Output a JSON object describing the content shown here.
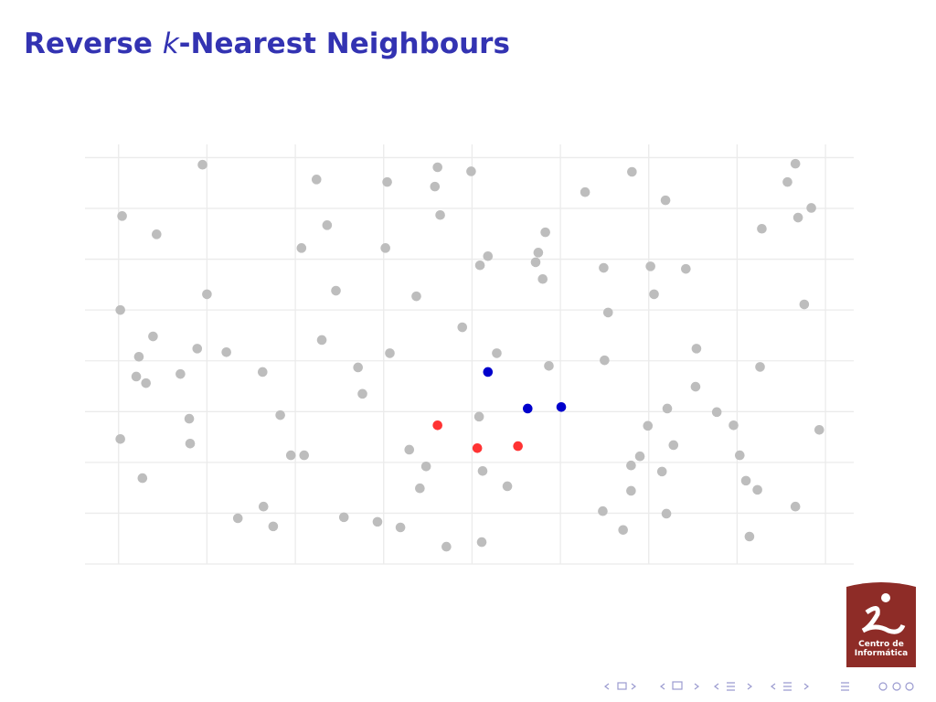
{
  "title_parts": [
    "Reverse ",
    "k",
    "-Nearest Neighbours"
  ],
  "logo": {
    "line1": "Centro de",
    "line2": "Informática"
  },
  "chart_data": {
    "type": "scatter",
    "xlim": [
      -0.38,
      8.32
    ],
    "ylim": [
      0,
      8.26
    ],
    "xticks": [
      0,
      1,
      2,
      3,
      4,
      5,
      6,
      7,
      8
    ],
    "yticks": [
      0,
      1,
      2,
      3,
      4,
      5,
      6,
      7,
      8
    ],
    "grid": true,
    "series": [
      {
        "color": "#bdbdbd",
        "x": [
          0.95,
          0.04,
          0.43,
          2.24,
          3.04,
          3.61,
          3.58,
          3.99,
          3.64,
          2.36,
          2.07,
          3.02,
          5.28,
          5.81,
          6.19,
          7.66,
          7.57,
          7.84,
          7.69,
          7.28,
          4.83,
          4.75,
          4.18,
          4.09,
          4.72,
          4.8,
          5.49,
          6.02,
          6.42,
          1.0,
          2.46,
          3.37,
          6.06,
          0.02,
          5.54,
          7.76,
          0.39,
          3.89,
          2.3,
          0.23,
          0.89,
          1.22,
          3.07,
          4.28,
          6.54,
          5.5,
          0.2,
          0.31,
          0.7,
          1.63,
          2.71,
          4.87,
          7.26,
          2.76,
          6.53,
          0.8,
          1.83,
          4.08,
          6.21,
          6.77,
          5.99,
          6.96,
          7.93,
          0.02,
          0.81,
          1.95,
          2.1,
          3.29,
          6.28,
          5.9,
          7.03,
          3.48,
          5.8,
          4.12,
          6.15,
          0.27,
          7.1,
          3.41,
          4.4,
          5.8,
          7.23,
          1.64,
          7.66,
          1.35,
          2.55,
          5.48,
          6.2,
          1.75,
          2.93,
          3.19,
          5.71,
          7.14,
          3.71,
          4.11
        ],
        "values": [
          7.86,
          6.85,
          6.49,
          7.57,
          7.52,
          7.81,
          7.43,
          7.73,
          6.87,
          6.67,
          6.22,
          6.22,
          7.32,
          7.72,
          7.16,
          7.88,
          7.52,
          7.01,
          6.82,
          6.6,
          6.53,
          6.13,
          6.06,
          5.88,
          5.94,
          5.61,
          5.83,
          5.86,
          5.81,
          5.31,
          5.38,
          5.27,
          5.31,
          5.0,
          4.95,
          5.11,
          4.48,
          4.66,
          4.41,
          4.08,
          4.24,
          4.17,
          4.15,
          4.15,
          4.24,
          4.01,
          3.69,
          3.56,
          3.74,
          3.78,
          3.87,
          3.9,
          3.88,
          3.35,
          3.49,
          2.86,
          2.93,
          2.9,
          3.06,
          2.99,
          2.72,
          2.73,
          2.64,
          2.46,
          2.37,
          2.14,
          2.14,
          2.25,
          2.34,
          2.12,
          2.14,
          1.92,
          1.94,
          1.83,
          1.82,
          1.69,
          1.64,
          1.49,
          1.53,
          1.44,
          1.46,
          1.13,
          1.13,
          0.9,
          0.92,
          1.04,
          0.99,
          0.74,
          0.83,
          0.72,
          0.67,
          0.54,
          0.34,
          0.43
        ]
      },
      {
        "color": "#0000cc",
        "x": [
          4.18,
          4.63,
          5.01
        ],
        "values": [
          3.78,
          3.06,
          3.09
        ]
      },
      {
        "color": "#ff3333",
        "x": [
          3.61,
          4.06,
          4.52
        ],
        "values": [
          2.73,
          2.28,
          2.32
        ]
      }
    ]
  }
}
